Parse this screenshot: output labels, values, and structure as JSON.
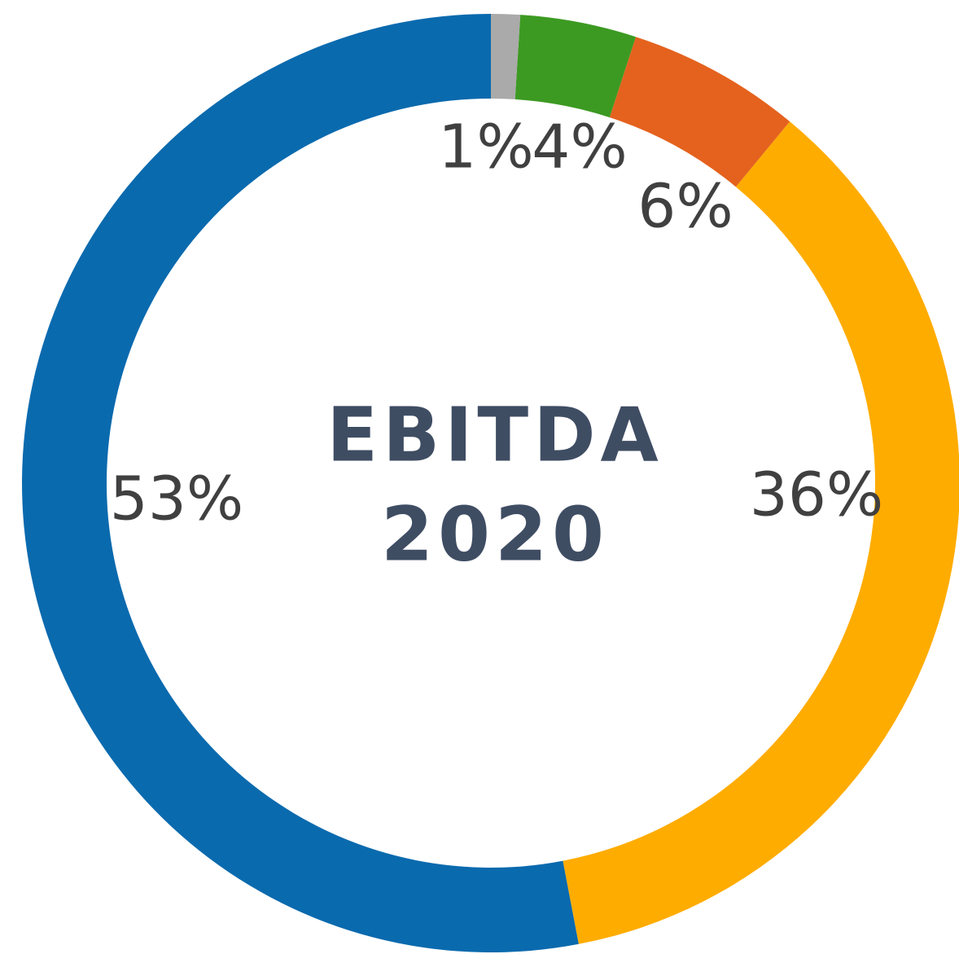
{
  "chart_data": {
    "type": "donut",
    "title": [
      "EBITDA",
      "2020"
    ],
    "categories": [
      null,
      null,
      null,
      null,
      null
    ],
    "values": [
      1,
      4,
      6,
      36,
      53
    ],
    "value_labels": [
      "1%",
      "4%",
      "6%",
      "36%",
      "53%"
    ],
    "colors": [
      "#aaaaaa",
      "#3c9a22",
      "#e4621e",
      "#ffac00",
      "#0a6aae"
    ]
  }
}
